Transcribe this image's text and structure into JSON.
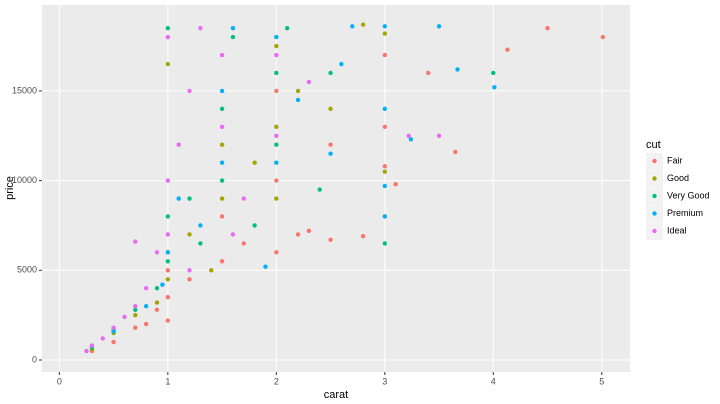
{
  "chart_data": {
    "type": "scatter",
    "x_label": "carat",
    "y_label": "price",
    "legend_title": "cut",
    "xlim": [
      -0.16,
      5.26
    ],
    "ylim": [
      -670,
      19790
    ],
    "xticks": [
      0,
      1,
      2,
      3,
      4,
      5
    ],
    "yticks": [
      0,
      5000,
      10000,
      15000
    ],
    "grid": true,
    "legend_position": "right",
    "series": [
      {
        "name": "Fair",
        "color": "#F8766D",
        "x": [
          0.3,
          0.5,
          0.7,
          0.9,
          1.0,
          1.0,
          1.2,
          1.5,
          1.5,
          1.7,
          2.0,
          2.0,
          2.0,
          2.2,
          2.5,
          2.5,
          3.0,
          3.0,
          3.0,
          3.1,
          3.4,
          3.65,
          4.13,
          4.5,
          5.01,
          1.0,
          0.8,
          2.3,
          2.8,
          3.0
        ],
        "values": [
          500,
          1000,
          1800,
          2800,
          3500,
          5000,
          4500,
          5500,
          8000,
          6500,
          6000,
          10000,
          15000,
          7000,
          12000,
          6700,
          13000,
          17000,
          8000,
          9800,
          16000,
          11600,
          17300,
          18500,
          18000,
          2200,
          2000,
          7200,
          6900,
          10800
        ]
      },
      {
        "name": "Good",
        "color": "#A3A500",
        "x": [
          0.3,
          0.5,
          0.7,
          1.0,
          1.0,
          1.2,
          1.5,
          1.5,
          1.0,
          2.0,
          2.0,
          2.2,
          2.5,
          2.8,
          3.0,
          3.0,
          1.8,
          0.9,
          2.0,
          1.4
        ],
        "values": [
          600,
          1500,
          2500,
          4500,
          6000,
          7000,
          9000,
          12000,
          16500,
          13000,
          17500,
          15000,
          14000,
          18700,
          10500,
          18200,
          11000,
          3200,
          9000,
          5000
        ]
      },
      {
        "name": "Very Good",
        "color": "#00BF7D",
        "x": [
          0.3,
          0.5,
          0.7,
          1.0,
          1.0,
          1.0,
          1.2,
          1.5,
          1.5,
          1.6,
          2.0,
          2.0,
          2.1,
          2.5,
          3.0,
          4.0,
          0.9,
          1.3,
          2.4,
          1.8
        ],
        "values": [
          700,
          1700,
          2800,
          5500,
          8000,
          18500,
          9000,
          10000,
          14000,
          18000,
          12000,
          16000,
          18500,
          16000,
          6500,
          16000,
          4000,
          6500,
          9500,
          7500
        ]
      },
      {
        "name": "Premium",
        "color": "#00B0F6",
        "x": [
          0.3,
          0.5,
          0.8,
          1.0,
          1.1,
          1.5,
          1.5,
          1.6,
          2.0,
          2.0,
          2.2,
          2.6,
          2.7,
          3.0,
          3.0,
          3.0,
          3.5,
          3.67,
          4.01,
          1.9,
          2.5,
          0.95,
          1.3,
          3.0,
          3.24
        ],
        "values": [
          800,
          1600,
          3000,
          6000,
          9000,
          11000,
          15000,
          18500,
          11000,
          18000,
          14500,
          16500,
          18600,
          18600,
          9700,
          8000,
          18600,
          16200,
          15200,
          5200,
          11500,
          4200,
          7500,
          14000,
          12300
        ]
      },
      {
        "name": "Ideal",
        "color": "#E76BF3",
        "x": [
          0.25,
          0.3,
          0.4,
          0.5,
          0.6,
          0.7,
          0.8,
          0.9,
          1.0,
          1.0,
          1.1,
          1.2,
          1.3,
          1.0,
          1.5,
          1.5,
          1.7,
          2.0,
          2.0,
          2.3,
          3.22,
          3.5,
          0.7,
          1.2,
          1.6
        ],
        "values": [
          500,
          800,
          1200,
          1800,
          2400,
          3000,
          4000,
          6000,
          7000,
          10000,
          12000,
          15000,
          18500,
          18000,
          13000,
          17000,
          9000,
          12500,
          17000,
          15500,
          12500,
          12500,
          6600,
          5000,
          7000
        ]
      }
    ]
  }
}
